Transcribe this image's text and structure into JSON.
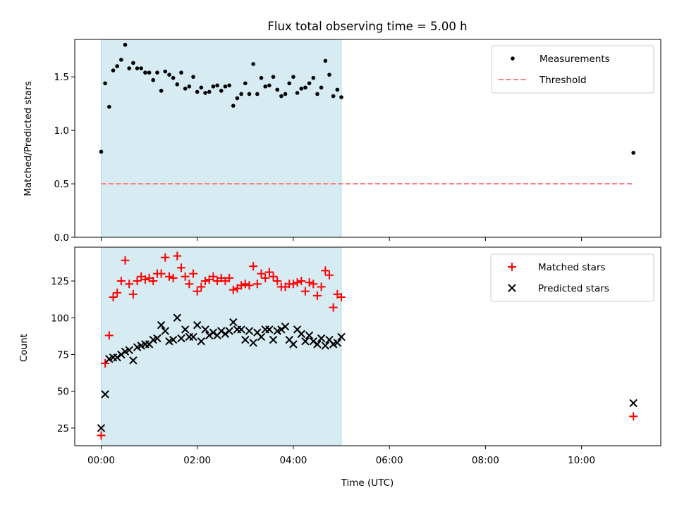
{
  "chart_data": [
    {
      "type": "scatter",
      "panel": "top",
      "title": "Flux total observing time = 5.00 h",
      "xlabel": "",
      "ylabel": "Matched/Predicted stars",
      "xlim": [
        -0.55,
        11.65
      ],
      "ylim": [
        0,
        1.85
      ],
      "yticks": [
        0.0,
        0.5,
        1.0,
        1.5
      ],
      "ytick_labels": [
        "0.0",
        "0.5",
        "1.0",
        "1.5"
      ],
      "shaded_span": {
        "x0": 0.0,
        "x1": 5.0,
        "color": "#add8e6"
      },
      "legend": {
        "position": "top-right",
        "entries": [
          "Measurements",
          "Threshold"
        ]
      },
      "series": [
        {
          "name": "Measurements",
          "color": "#000000",
          "marker": "dot",
          "x": [
            0.0,
            0.083,
            0.167,
            0.25,
            0.333,
            0.417,
            0.5,
            0.583,
            0.667,
            0.75,
            0.833,
            0.917,
            1.0,
            1.083,
            1.167,
            1.25,
            1.333,
            1.417,
            1.5,
            1.583,
            1.667,
            1.75,
            1.833,
            1.917,
            2.0,
            2.083,
            2.167,
            2.25,
            2.333,
            2.417,
            2.5,
            2.583,
            2.667,
            2.75,
            2.833,
            2.917,
            3.0,
            3.083,
            3.167,
            3.25,
            3.333,
            3.417,
            3.5,
            3.583,
            3.667,
            3.75,
            3.833,
            3.917,
            4.0,
            4.083,
            4.167,
            4.25,
            4.333,
            4.417,
            4.5,
            4.583,
            4.667,
            4.75,
            4.833,
            4.917,
            5.0,
            11.08
          ],
          "y": [
            0.8,
            1.44,
            1.22,
            1.56,
            1.6,
            1.66,
            1.8,
            1.58,
            1.63,
            1.58,
            1.58,
            1.54,
            1.54,
            1.47,
            1.54,
            1.37,
            1.55,
            1.52,
            1.49,
            1.43,
            1.54,
            1.39,
            1.41,
            1.5,
            1.36,
            1.4,
            1.35,
            1.36,
            1.41,
            1.42,
            1.37,
            1.41,
            1.42,
            1.23,
            1.3,
            1.34,
            1.44,
            1.34,
            1.62,
            1.34,
            1.49,
            1.41,
            1.42,
            1.5,
            1.38,
            1.32,
            1.34,
            1.44,
            1.5,
            1.35,
            1.39,
            1.4,
            1.44,
            1.49,
            1.34,
            1.4,
            1.65,
            1.52,
            1.32,
            1.38,
            1.31,
            0.79
          ]
        },
        {
          "name": "Threshold",
          "color": "#ff7f7f",
          "style": "dashed",
          "x": [
            0.0,
            11.08
          ],
          "y": [
            0.5,
            0.5
          ]
        }
      ]
    },
    {
      "type": "scatter",
      "panel": "bottom",
      "xlabel": "Time (UTC)",
      "ylabel": "Count",
      "xlim": [
        -0.55,
        11.65
      ],
      "ylim": [
        13,
        148
      ],
      "xticks": [
        0,
        2,
        4,
        6,
        8,
        10
      ],
      "xtick_labels": [
        "00:00",
        "02:00",
        "04:00",
        "06:00",
        "08:00",
        "10:00"
      ],
      "yticks": [
        25,
        50,
        75,
        100,
        125
      ],
      "ytick_labels": [
        "25",
        "50",
        "75",
        "100",
        "125"
      ],
      "shaded_span": {
        "x0": 0.0,
        "x1": 5.0,
        "color": "#add8e6"
      },
      "legend": {
        "position": "top-right",
        "entries": [
          "Matched stars",
          "Predicted stars"
        ]
      },
      "series": [
        {
          "name": "Matched stars",
          "color": "#ff0000",
          "marker": "plus",
          "x": [
            0.0,
            0.083,
            0.167,
            0.25,
            0.333,
            0.417,
            0.5,
            0.583,
            0.667,
            0.75,
            0.833,
            0.917,
            1.0,
            1.083,
            1.167,
            1.25,
            1.333,
            1.417,
            1.5,
            1.583,
            1.667,
            1.75,
            1.833,
            1.917,
            2.0,
            2.083,
            2.167,
            2.25,
            2.333,
            2.417,
            2.5,
            2.583,
            2.667,
            2.75,
            2.833,
            2.917,
            3.0,
            3.083,
            3.167,
            3.25,
            3.333,
            3.417,
            3.5,
            3.583,
            3.667,
            3.75,
            3.833,
            3.917,
            4.0,
            4.083,
            4.167,
            4.25,
            4.333,
            4.417,
            4.5,
            4.583,
            4.667,
            4.75,
            4.833,
            4.917,
            5.0,
            11.08
          ],
          "y": [
            20,
            69,
            88,
            114,
            117,
            125,
            139,
            123,
            116,
            125,
            128,
            126,
            127,
            125,
            130,
            130,
            141,
            128,
            127,
            142,
            134,
            128,
            123,
            130,
            118,
            121,
            125,
            126,
            128,
            125,
            127,
            125,
            127,
            119,
            120,
            122,
            123,
            122,
            135,
            123,
            130,
            127,
            131,
            128,
            125,
            121,
            121,
            123,
            123,
            124,
            125,
            118,
            124,
            123,
            115,
            121,
            132,
            129,
            107,
            116,
            114,
            33
          ]
        },
        {
          "name": "Predicted stars",
          "color": "#000000",
          "marker": "x",
          "x": [
            0.0,
            0.083,
            0.167,
            0.25,
            0.333,
            0.417,
            0.5,
            0.583,
            0.667,
            0.75,
            0.833,
            0.917,
            1.0,
            1.083,
            1.167,
            1.25,
            1.333,
            1.417,
            1.5,
            1.583,
            1.667,
            1.75,
            1.833,
            1.917,
            2.0,
            2.083,
            2.167,
            2.25,
            2.333,
            2.417,
            2.5,
            2.583,
            2.667,
            2.75,
            2.833,
            2.917,
            3.0,
            3.083,
            3.167,
            3.25,
            3.333,
            3.417,
            3.5,
            3.583,
            3.667,
            3.75,
            3.833,
            3.917,
            4.0,
            4.083,
            4.167,
            4.25,
            4.333,
            4.417,
            4.5,
            4.583,
            4.667,
            4.75,
            4.833,
            4.917,
            5.0,
            11.08
          ],
          "y": [
            25,
            48,
            72,
            73,
            73,
            75,
            77,
            78,
            71,
            80,
            81,
            82,
            82,
            85,
            86,
            95,
            91,
            84,
            85,
            100,
            86,
            92,
            87,
            87,
            95,
            84,
            92,
            88,
            90,
            88,
            91,
            89,
            91,
            97,
            92,
            92,
            85,
            91,
            83,
            90,
            87,
            92,
            92,
            85,
            91,
            92,
            94,
            85,
            82,
            92,
            89,
            84,
            88,
            84,
            82,
            86,
            81,
            85,
            82,
            83,
            87,
            42
          ]
        }
      ]
    }
  ]
}
